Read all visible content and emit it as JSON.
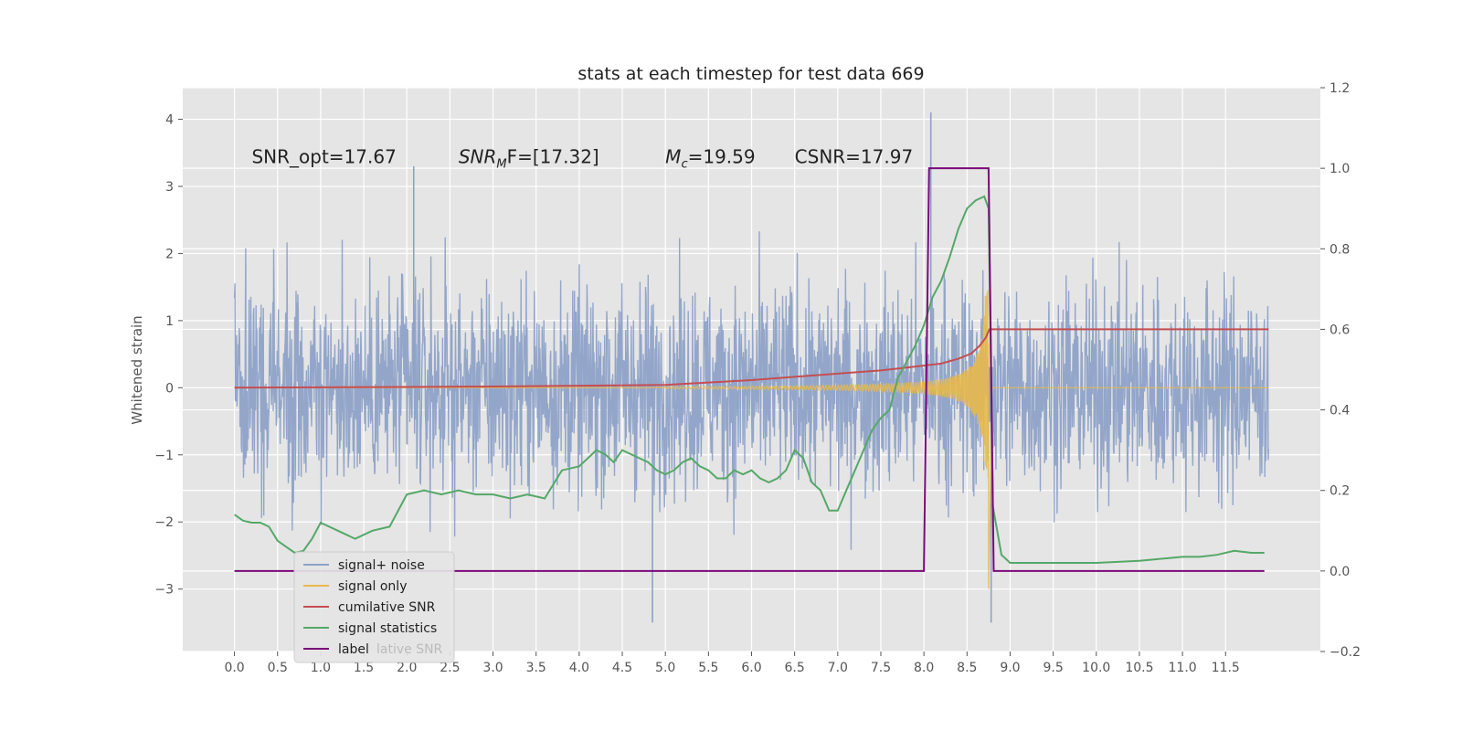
{
  "chart_data": {
    "type": "line",
    "title": "stats at each timestep for test data 669",
    "ylabel": "Whitened strain",
    "xlim": [
      -0.6,
      12.6
    ],
    "ylim": [
      -3.93,
      4.47
    ],
    "y2lim": [
      -0.2,
      1.2
    ],
    "grid": true,
    "legend_position": "lower-left",
    "x_ticks": [
      "0.0",
      "0.5",
      "1.0",
      "1.5",
      "2.0",
      "2.5",
      "3.0",
      "3.5",
      "4.0",
      "4.5",
      "5.0",
      "5.5",
      "6.0",
      "6.5",
      "7.0",
      "7.5",
      "8.0",
      "8.5",
      "9.0",
      "9.5",
      "10.0",
      "10.5",
      "11.0",
      "11.5"
    ],
    "y_ticks": [
      "4",
      "3",
      "2",
      "1",
      "0",
      "−1",
      "−2",
      "−3"
    ],
    "y2_ticks": [
      "1.2",
      "1.0",
      "0.8",
      "0.6",
      "0.4",
      "0.2",
      "0.0",
      "−0.2"
    ],
    "annotations": [
      {
        "x": 0.2,
        "y": 3.35,
        "prefix": "SNR_opt=17.67",
        "sub": "",
        "suffix": "",
        "italic": false
      },
      {
        "x": 2.6,
        "y": 3.35,
        "prefix": "SNR",
        "sub": "M",
        "suffix": "F=[17.32]",
        "italic": true
      },
      {
        "x": 5.0,
        "y": 3.35,
        "prefix": "M",
        "sub": "c",
        "suffix": "=19.59",
        "italic": true
      },
      {
        "x": 6.5,
        "y": 3.35,
        "prefix": "CSNR=17.97",
        "sub": "",
        "suffix": "",
        "italic": false
      }
    ],
    "legend": [
      {
        "label": "signal+ noise",
        "color": "#8ea2c8"
      },
      {
        "label": "signal only",
        "color": "#e8b94b"
      },
      {
        "label": "cumilative SNR",
        "color": "#c44e52"
      },
      {
        "label": "signal statistics",
        "color": "#55a868"
      },
      {
        "label": "label",
        "color": "#7a0a7a"
      }
    ],
    "legend_ghost_text": "lative SNR",
    "series": [
      {
        "name": "signal+ noise",
        "axis": "left",
        "color": "#8ea2c8",
        "x_range": [
          0.0,
          12.0
        ],
        "noise_band": [
          -1.6,
          1.6
        ],
        "spikes": [
          [
            2.08,
            3.3
          ],
          [
            8.08,
            4.1
          ],
          [
            4.85,
            -3.5
          ],
          [
            8.78,
            -3.5
          ]
        ]
      },
      {
        "name": "signal only",
        "axis": "left",
        "color": "#e8b94b",
        "chirp_start": 5.0,
        "chirp_peak": 8.75,
        "peak_amplitude": 1.5,
        "min_amplitude": -3.0,
        "end": 12.0
      },
      {
        "name": "cumilative SNR",
        "axis": "right",
        "color": "#c44e52",
        "x": [
          0.0,
          1.0,
          2.0,
          3.0,
          4.0,
          5.0,
          5.5,
          6.0,
          6.5,
          7.0,
          7.5,
          7.8,
          8.0,
          8.2,
          8.4,
          8.55,
          8.65,
          8.72,
          8.76,
          12.0
        ],
        "y": [
          0.455,
          0.456,
          0.457,
          0.458,
          0.46,
          0.462,
          0.468,
          0.474,
          0.482,
          0.49,
          0.498,
          0.505,
          0.51,
          0.515,
          0.527,
          0.54,
          0.56,
          0.58,
          0.6,
          0.6
        ]
      },
      {
        "name": "signal statistics",
        "axis": "right",
        "color": "#55a868",
        "x": [
          0.0,
          0.1,
          0.2,
          0.3,
          0.4,
          0.5,
          0.6,
          0.7,
          0.8,
          0.9,
          1.0,
          1.2,
          1.4,
          1.6,
          1.8,
          2.0,
          2.2,
          2.4,
          2.6,
          2.8,
          3.0,
          3.2,
          3.4,
          3.6,
          3.8,
          4.0,
          4.1,
          4.2,
          4.3,
          4.4,
          4.5,
          4.6,
          4.7,
          4.8,
          4.9,
          5.0,
          5.1,
          5.2,
          5.3,
          5.4,
          5.5,
          5.6,
          5.7,
          5.8,
          5.9,
          6.0,
          6.1,
          6.2,
          6.3,
          6.4,
          6.5,
          6.6,
          6.7,
          6.8,
          6.9,
          7.0,
          7.1,
          7.2,
          7.3,
          7.4,
          7.5,
          7.6,
          7.7,
          7.8,
          7.9,
          8.0,
          8.1,
          8.2,
          8.3,
          8.4,
          8.5,
          8.6,
          8.7,
          8.75,
          8.8,
          8.9,
          9.0,
          9.2,
          9.5,
          10.0,
          10.5,
          11.0,
          11.2,
          11.4,
          11.6,
          11.8,
          11.95
        ],
        "y": [
          0.14,
          0.125,
          0.12,
          0.12,
          0.11,
          0.075,
          0.06,
          0.045,
          0.05,
          0.08,
          0.12,
          0.1,
          0.08,
          0.1,
          0.11,
          0.19,
          0.2,
          0.19,
          0.2,
          0.19,
          0.19,
          0.18,
          0.19,
          0.18,
          0.25,
          0.26,
          0.28,
          0.3,
          0.29,
          0.27,
          0.3,
          0.29,
          0.28,
          0.27,
          0.25,
          0.24,
          0.25,
          0.27,
          0.28,
          0.26,
          0.25,
          0.23,
          0.23,
          0.25,
          0.24,
          0.25,
          0.23,
          0.22,
          0.23,
          0.25,
          0.3,
          0.28,
          0.22,
          0.2,
          0.15,
          0.15,
          0.2,
          0.25,
          0.3,
          0.35,
          0.38,
          0.4,
          0.48,
          0.52,
          0.56,
          0.61,
          0.68,
          0.72,
          0.78,
          0.85,
          0.9,
          0.92,
          0.93,
          0.9,
          0.16,
          0.04,
          0.02,
          0.02,
          0.02,
          0.02,
          0.025,
          0.035,
          0.035,
          0.04,
          0.05,
          0.045,
          0.045
        ]
      },
      {
        "name": "label",
        "axis": "right",
        "color": "#7a0a7a",
        "x": [
          0.0,
          8.0,
          8.06,
          8.75,
          8.81,
          11.95
        ],
        "y": [
          0.0,
          0.0,
          1.0,
          1.0,
          0.0,
          0.0
        ]
      }
    ]
  }
}
